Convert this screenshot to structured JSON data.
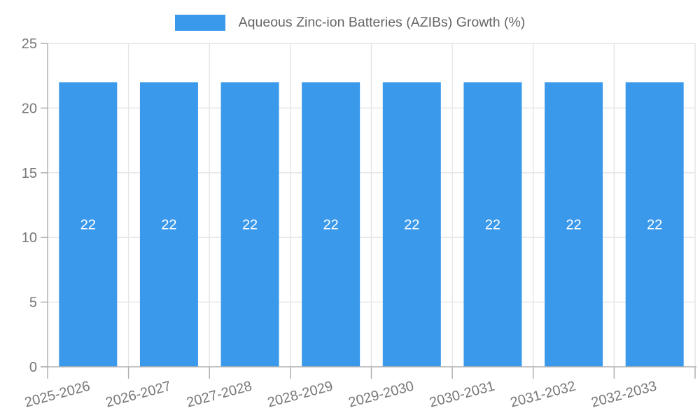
{
  "chart_data": {
    "type": "bar",
    "title": "",
    "categories": [
      "2025-2026",
      "2026-2027",
      "2027-2028",
      "2028-2029",
      "2029-2030",
      "2030-2031",
      "2031-2032",
      "2032-2033"
    ],
    "series": [
      {
        "name": "Aqueous Zinc-ion Batteries (AZIBs) Growth (%)",
        "values": [
          22,
          22,
          22,
          22,
          22,
          22,
          22,
          22
        ]
      }
    ],
    "bar_value_labels": [
      "22",
      "22",
      "22",
      "22",
      "22",
      "22",
      "22",
      "22"
    ],
    "xlabel": "",
    "ylabel": "",
    "ylim": [
      0,
      25
    ],
    "yticks": [
      0,
      5,
      10,
      15,
      20,
      25
    ],
    "grid": true,
    "legend_position": "top",
    "x_label_rotation_deg": -15,
    "colors": {
      "bar": "#3b99ec",
      "grid": "#e6e6e6",
      "axis": "#b0b0b0",
      "tick_label": "#777777",
      "legend_text": "#666666",
      "value_label": "#ffffff",
      "background": "#ffffff"
    }
  }
}
